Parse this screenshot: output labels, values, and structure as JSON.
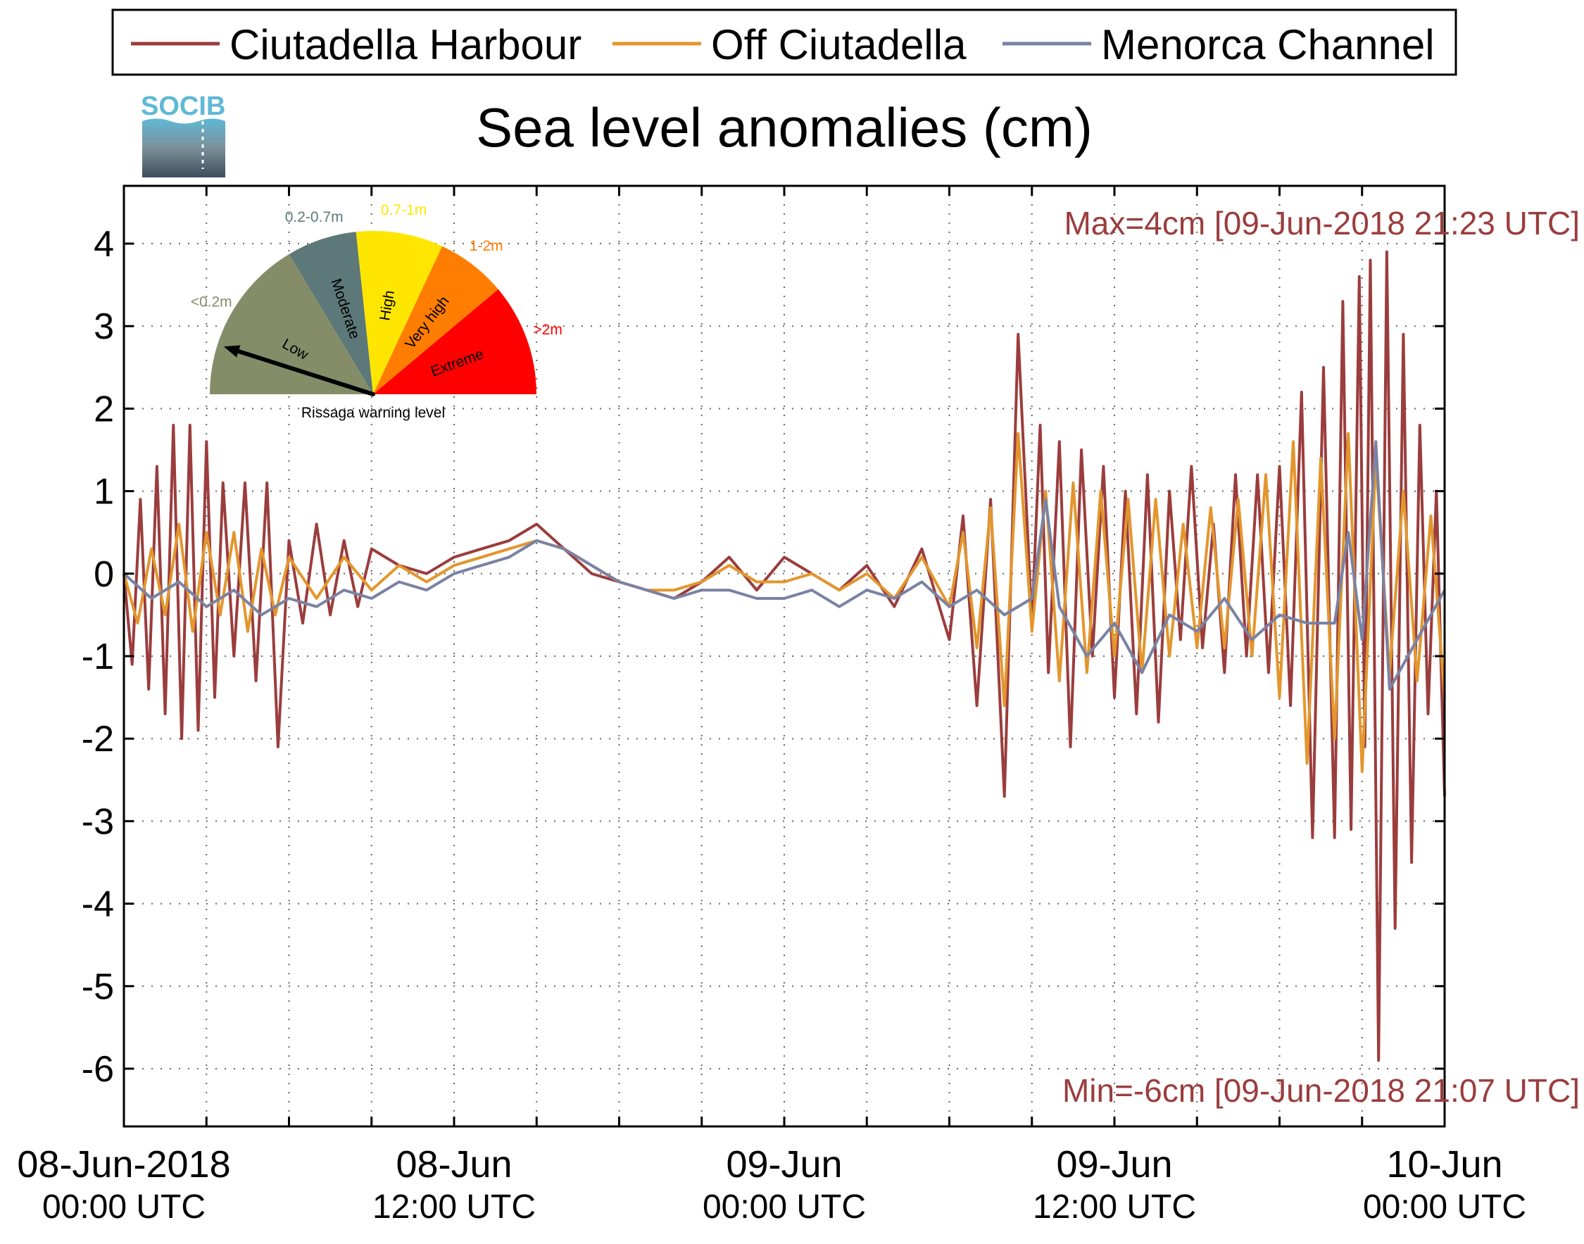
{
  "chart_data": {
    "type": "line",
    "title": "Sea level anomalies (cm)",
    "logo": "SOCIB",
    "legend": {
      "position": "top",
      "entries": [
        {
          "name": "Ciutadella Harbour",
          "color": "#9b3d3d"
        },
        {
          "name": "Off Ciutadella",
          "color": "#e3962d"
        },
        {
          "name": "Menorca Channel",
          "color": "#7a82a3"
        }
      ]
    },
    "xlabel": "",
    "ylabel": "",
    "x_unit": "hours since 08-Jun-2018 00:00 UTC",
    "xlim": [
      0,
      48
    ],
    "ylim": [
      -6.7,
      4.7
    ],
    "grid": true,
    "yticks": [
      4,
      3,
      2,
      1,
      0,
      -1,
      -2,
      -3,
      -4,
      -5,
      -6
    ],
    "ytick_labels": [
      "4",
      "3",
      "2",
      "1",
      "0",
      "-1",
      "-2",
      "-3",
      "-4",
      "-5",
      "-6"
    ],
    "xticks": [
      {
        "x": 0,
        "label": "08-Jun-2018",
        "sub": "00:00 UTC"
      },
      {
        "x": 12,
        "label": "08-Jun",
        "sub": "12:00 UTC"
      },
      {
        "x": 24,
        "label": "09-Jun",
        "sub": "00:00 UTC"
      },
      {
        "x": 36,
        "label": "09-Jun",
        "sub": "12:00 UTC"
      },
      {
        "x": 48,
        "label": "10-Jun",
        "sub": "00:00 UTC"
      }
    ],
    "minor_xticks": [
      3,
      6,
      9,
      15,
      18,
      21,
      27,
      30,
      33,
      39,
      42,
      45
    ],
    "annotations": {
      "max": "Max=4cm [09-Jun-2018 21:23 UTC]",
      "min": "Min=-6cm [09-Jun-2018 21:07 UTC]",
      "color": "#9b3d3d"
    },
    "series": [
      {
        "name": "Ciutadella Harbour",
        "color": "#9b3d3d",
        "x": [
          0,
          0.3,
          0.6,
          0.9,
          1.2,
          1.5,
          1.8,
          2.1,
          2.4,
          2.7,
          3.0,
          3.3,
          3.6,
          4.0,
          4.4,
          4.8,
          5.2,
          5.6,
          6.0,
          6.5,
          7.0,
          7.5,
          8.0,
          8.5,
          9.0,
          10,
          11,
          12,
          13,
          14,
          15,
          16,
          17,
          18,
          19,
          20,
          21,
          22,
          23,
          24,
          25,
          26,
          27,
          28,
          29,
          30,
          30.5,
          31,
          31.5,
          32,
          32.5,
          33,
          33.3,
          33.6,
          34,
          34.4,
          34.8,
          35.2,
          35.6,
          36,
          36.4,
          36.8,
          37.2,
          37.6,
          38,
          38.4,
          38.8,
          39.2,
          39.6,
          40,
          40.4,
          40.8,
          41.2,
          41.6,
          42,
          42.4,
          42.8,
          43.2,
          43.6,
          44,
          44.3,
          44.6,
          44.9,
          45.1,
          45.3,
          45.6,
          45.9,
          46.2,
          46.5,
          46.8,
          47.1,
          47.4,
          47.7,
          48
        ],
        "values": [
          0,
          -1.1,
          0.9,
          -1.4,
          1.3,
          -1.7,
          1.8,
          -2.0,
          1.8,
          -1.9,
          1.6,
          -1.5,
          1.1,
          -1.0,
          1.1,
          -1.3,
          1.1,
          -2.1,
          0.4,
          -0.6,
          0.6,
          -0.5,
          0.4,
          -0.4,
          0.3,
          0.1,
          0,
          0.2,
          0.3,
          0.4,
          0.6,
          0.3,
          0,
          -0.1,
          -0.2,
          -0.3,
          -0.1,
          0.2,
          -0.2,
          0.2,
          0,
          -0.2,
          0.1,
          -0.4,
          0.3,
          -0.8,
          0.7,
          -1.6,
          0.9,
          -2.7,
          2.9,
          -0.6,
          1.8,
          -1.2,
          1.6,
          -2.1,
          1.5,
          -1.0,
          1.3,
          -1.5,
          1.0,
          -1.7,
          1.2,
          -1.8,
          1.0,
          -0.8,
          1.3,
          -0.9,
          0.6,
          -1.2,
          1.2,
          -1.0,
          1.2,
          -1.2,
          1.3,
          -1.6,
          2.2,
          -3.2,
          2.5,
          -3.2,
          3.3,
          -3.1,
          3.6,
          -2.1,
          3.8,
          -5.9,
          3.9,
          -4.3,
          2.9,
          -3.5,
          1.8,
          -1.7,
          1.0,
          -2.7
        ]
      },
      {
        "name": "Off Ciutadella",
        "color": "#e3962d",
        "x": [
          0,
          0.5,
          1,
          1.5,
          2,
          2.5,
          3,
          3.5,
          4,
          4.5,
          5,
          5.5,
          6,
          7,
          8,
          9,
          10,
          11,
          12,
          13,
          14,
          15,
          16,
          17,
          18,
          19,
          20,
          21,
          22,
          23,
          24,
          25,
          26,
          27,
          28,
          29,
          30,
          30.5,
          31,
          31.5,
          32,
          32.5,
          33,
          33.5,
          34,
          34.5,
          35,
          35.5,
          36,
          36.5,
          37,
          37.5,
          38,
          38.5,
          39,
          39.5,
          40,
          40.5,
          41,
          41.5,
          42,
          42.5,
          43,
          43.5,
          44,
          44.5,
          45,
          45.5,
          46,
          46.5,
          47,
          47.5,
          48
        ],
        "values": [
          0,
          -0.6,
          0.3,
          -0.5,
          0.6,
          -0.7,
          0.5,
          -0.5,
          0.5,
          -0.7,
          0.3,
          -0.5,
          0.2,
          -0.3,
          0.2,
          -0.2,
          0.1,
          -0.1,
          0.1,
          0.2,
          0.3,
          0.4,
          0.3,
          0.1,
          -0.1,
          -0.2,
          -0.2,
          -0.1,
          0.1,
          -0.1,
          -0.1,
          0.0,
          -0.2,
          0.0,
          -0.3,
          0.2,
          -0.4,
          0.5,
          -0.9,
          0.8,
          -1.6,
          1.7,
          -0.7,
          1.0,
          -1.3,
          1.1,
          -1.2,
          1.0,
          -1.0,
          0.9,
          -1.2,
          0.9,
          -1.0,
          0.6,
          -0.9,
          0.8,
          -0.9,
          0.9,
          -1.0,
          1.2,
          -1.5,
          1.6,
          -2.3,
          1.4,
          -2.0,
          1.7,
          -2.4,
          1.4,
          -1.2,
          1.0,
          -1.3,
          0.7,
          -1.5
        ]
      },
      {
        "name": "Menorca Channel",
        "color": "#7a82a3",
        "x": [
          0,
          1,
          2,
          3,
          4,
          5,
          6,
          7,
          8,
          9,
          10,
          11,
          12,
          13,
          14,
          15,
          16,
          17,
          18,
          19,
          20,
          21,
          22,
          23,
          24,
          25,
          26,
          27,
          28,
          29,
          30,
          31,
          32,
          33,
          33.5,
          34,
          35,
          36,
          37,
          38,
          39,
          40,
          41,
          42,
          43,
          44,
          44.5,
          45,
          45.5,
          46,
          47,
          48
        ],
        "values": [
          0,
          -0.3,
          -0.1,
          -0.4,
          -0.2,
          -0.5,
          -0.3,
          -0.4,
          -0.2,
          -0.3,
          -0.1,
          -0.2,
          0.0,
          0.1,
          0.2,
          0.4,
          0.3,
          0.1,
          -0.1,
          -0.2,
          -0.3,
          -0.2,
          -0.2,
          -0.3,
          -0.3,
          -0.2,
          -0.4,
          -0.2,
          -0.3,
          -0.1,
          -0.4,
          -0.2,
          -0.5,
          -0.3,
          0.9,
          -0.4,
          -1.0,
          -0.6,
          -1.2,
          -0.5,
          -0.7,
          -0.3,
          -0.8,
          -0.5,
          -0.6,
          -0.6,
          0.5,
          -0.8,
          1.6,
          -1.4,
          -0.8,
          -0.2
        ]
      }
    ],
    "inset_gauge": {
      "title": "Rissaga warning level",
      "needle_level": "Low",
      "sectors": [
        {
          "category": "Low",
          "range": "<0.2m",
          "color": "#858d68"
        },
        {
          "category": "Moderate",
          "range": "0.2-0.7m",
          "color": "#5d7878"
        },
        {
          "category": "High",
          "range": "0.7-1m",
          "color": "#ffe600"
        },
        {
          "category": "Very high",
          "range": "1-2m",
          "color": "#ff7d00"
        },
        {
          "category": "Extreme",
          "range": ">2m",
          "color": "#ff0000"
        }
      ]
    }
  }
}
